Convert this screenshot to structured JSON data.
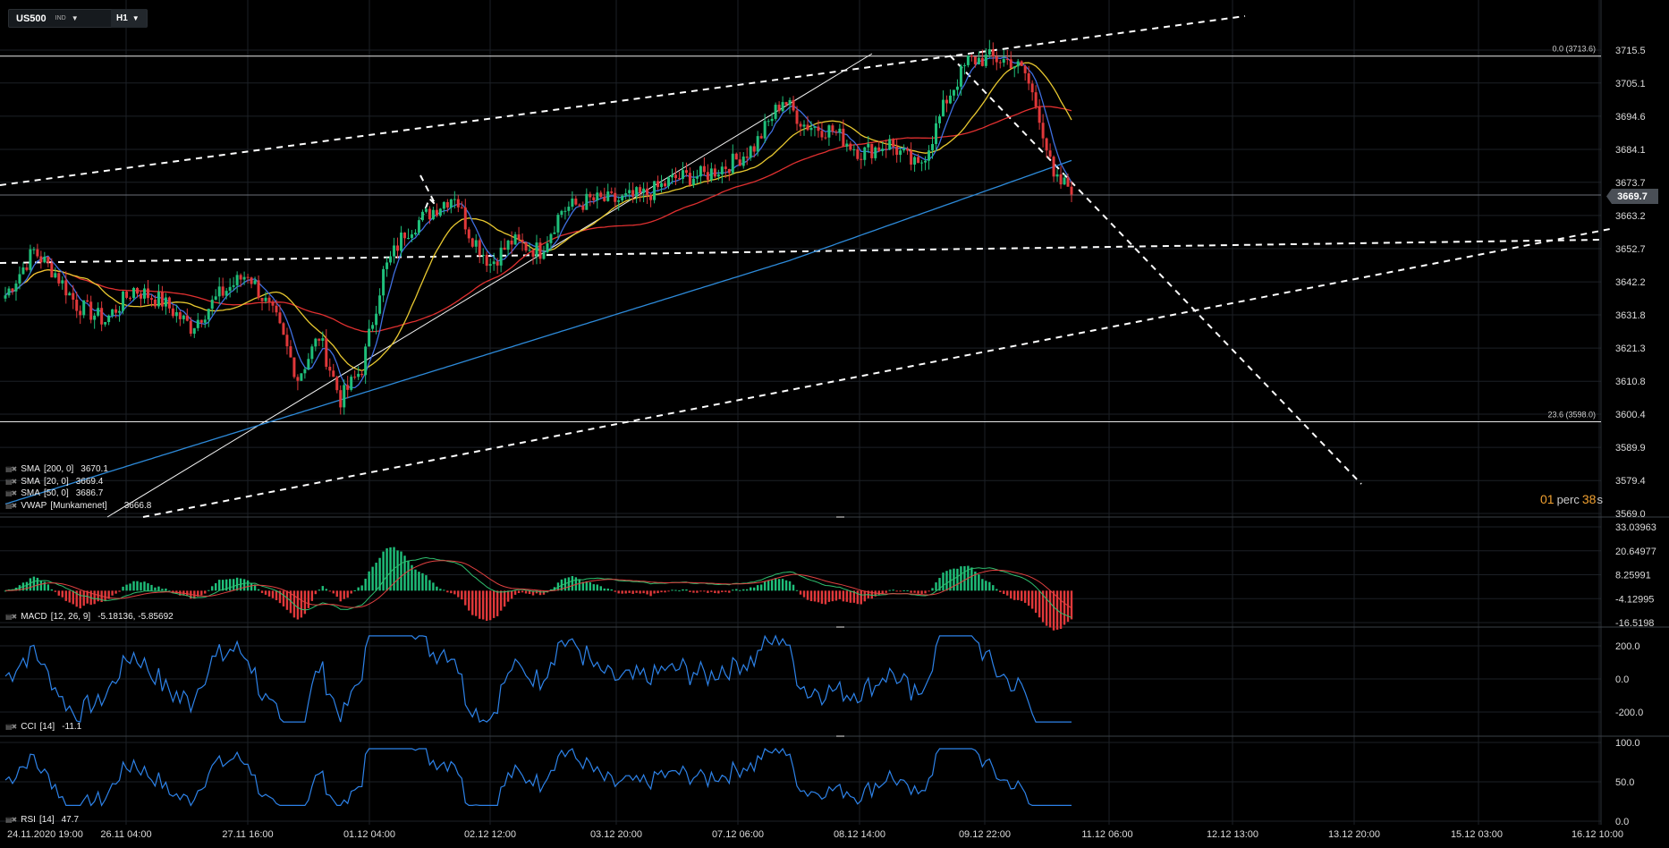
{
  "toolbar": {
    "symbol": "US500",
    "symbol_tag": "IND",
    "timeframe": "H1"
  },
  "indicators": {
    "sma200": {
      "name": "SMA",
      "params": "[200, 0]",
      "value": "3670.1",
      "color": "#2d8ad9"
    },
    "sma20": {
      "name": "SMA",
      "params": "[20, 0]",
      "value": "3669.4",
      "color": "#3f6fe0"
    },
    "sma50": {
      "name": "SMA",
      "params": "[50, 0]",
      "value": "3686.7",
      "color": "#e03030"
    },
    "vwap": {
      "name": "VWAP",
      "params": "[Munkamenet]",
      "value": "3666.8",
      "color": "#e8c830"
    },
    "macd": {
      "name": "MACD",
      "params": "[12, 26, 9]",
      "value": "-5.18136, -5.85692"
    },
    "cci": {
      "name": "CCI",
      "params": "[14]",
      "value": "-11.1"
    },
    "rsi": {
      "name": "RSI",
      "params": "[14]",
      "value": "47.7"
    }
  },
  "price_axis": {
    "ticks": [
      "3715.5",
      "3705.1",
      "3694.6",
      "3684.1",
      "3673.7",
      "3663.2",
      "3652.7",
      "3642.2",
      "3631.8",
      "3621.3",
      "3610.8",
      "3600.4",
      "3589.9",
      "3579.4",
      "3569.0"
    ],
    "current_price": "3669.7"
  },
  "fib_levels": [
    {
      "label": "0.0 (3713.6)",
      "value": 3713.6
    },
    {
      "label": "23.6 (3598.0)",
      "value": 3598.0
    }
  ],
  "macd_axis": {
    "ticks": [
      "33.03963",
      "20.64977",
      "8.25991",
      "-4.12995",
      "-16.5198"
    ]
  },
  "cci_axis": {
    "ticks": [
      "200.0",
      "0.0",
      "-200.0"
    ]
  },
  "rsi_axis": {
    "ticks": [
      "100.0",
      "50.0",
      "0.0"
    ]
  },
  "time_axis": {
    "labels": [
      "24.11.2020 19:00",
      "26.11 04:00",
      "27.11 16:00",
      "01.12 04:00",
      "02.12 12:00",
      "03.12 20:00",
      "07.12 06:00",
      "08.12 14:00",
      "09.12 22:00",
      "11.12 06:00",
      "12.12 13:00",
      "13.12 20:00",
      "15.12 03:00",
      "16.12 10:00"
    ]
  },
  "timer": {
    "value1": "01",
    "unit": "perc",
    "value2": "38",
    "unit2": "s"
  },
  "colors": {
    "background": "#000000",
    "grid": "#1c2026",
    "bull": "#1fbf7a",
    "bear": "#e0383a",
    "sma200": "#2d8ad9",
    "sma20": "#3f6fe0",
    "sma50": "#e03030",
    "vwap": "#e8c830",
    "indicator_line": "#2d82e8"
  }
}
